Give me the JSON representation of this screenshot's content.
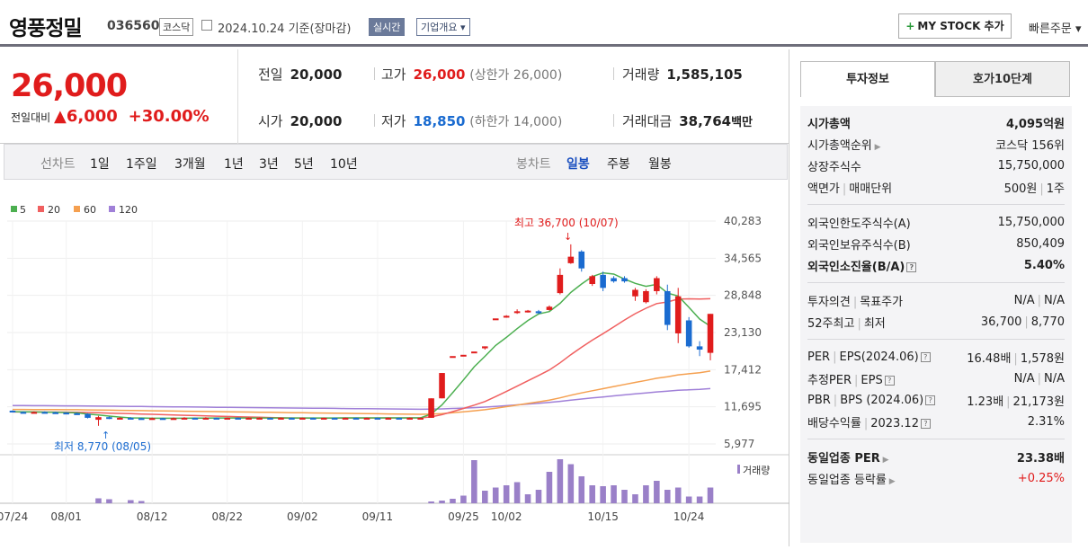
{
  "header": {
    "name": "영풍정밀",
    "code": "036560",
    "market": "코스닥",
    "date": "2024.10.24 기준(장마감)",
    "realtime": "실시간",
    "company_info": "기업개요",
    "mystock": "MY STOCK 추가",
    "quick_order": "빠른주문"
  },
  "price": {
    "current": "26,000",
    "change_label": "전일대비",
    "change": "6,000",
    "change_pct": "+30.00%",
    "prev_label": "전일",
    "prev": "20,000",
    "high_label": "고가",
    "high": "26,000",
    "high_limit": "(상한가 26,000)",
    "volume_label": "거래량",
    "volume": "1,585,105",
    "open_label": "시가",
    "open": "20,000",
    "low_label": "저가",
    "low": "18,850",
    "low_limit": "(하한가 14,000)",
    "amount_label": "거래대금",
    "amount": "38,764",
    "amount_unit": "백만"
  },
  "range_tabs": {
    "label": "선차트",
    "items": [
      "1일",
      "1주일",
      "3개월",
      "1년",
      "3년",
      "5년",
      "10년"
    ]
  },
  "candle_tabs": {
    "label": "봉차트",
    "items": [
      "일봉",
      "주봉",
      "월봉"
    ],
    "selected": "일봉"
  },
  "legend": {
    "ma5": "5",
    "ma20": "20",
    "ma60": "60",
    "ma120": "120",
    "volume": "거래량"
  },
  "colors": {
    "ma5": "#4caf50",
    "ma20": "#f06060",
    "ma60": "#f5a050",
    "ma120": "#a080d8",
    "up": "#e01c1c",
    "down": "#1a6bd0",
    "volume": "#9a80c8"
  },
  "chart_data": {
    "type": "candlestick",
    "y_ticks": [
      "40,283",
      "34,565",
      "28,848",
      "23,130",
      "17,412",
      "11,695",
      "5,977"
    ],
    "x_ticks": [
      "07/24",
      "08/01",
      "08/12",
      "08/22",
      "09/02",
      "09/11",
      "09/25",
      "10/02",
      "10/15",
      "10/24"
    ],
    "max_label": "최고 36,700 (10/07)",
    "min_label": "최저 8,770 (08/05)",
    "candles": [
      [
        11100,
        10900,
        11150,
        10850
      ],
      [
        10900,
        10800,
        11000,
        10700
      ],
      [
        10800,
        10900,
        11000,
        10700
      ],
      [
        10900,
        10850,
        11000,
        10750
      ],
      [
        10850,
        10800,
        10950,
        10700
      ],
      [
        10800,
        10700,
        10850,
        10600
      ],
      [
        10700,
        10600,
        10800,
        10500
      ],
      [
        10600,
        10000,
        10700,
        9900
      ],
      [
        9700,
        10100,
        10300,
        8770
      ],
      [
        10100,
        9900,
        10200,
        9800
      ],
      [
        9900,
        10000,
        10100,
        9800
      ],
      [
        10000,
        9950,
        10100,
        9850
      ],
      [
        9950,
        9900,
        10000,
        9800
      ],
      [
        9900,
        9950,
        10050,
        9850
      ],
      [
        9950,
        9900,
        10000,
        9800
      ],
      [
        9900,
        9950,
        10050,
        9850
      ],
      [
        9950,
        10000,
        10100,
        9900
      ],
      [
        10000,
        9950,
        10050,
        9850
      ],
      [
        9950,
        10000,
        10100,
        9900
      ],
      [
        10000,
        9950,
        10050,
        9900
      ],
      [
        9950,
        10000,
        10050,
        9900
      ],
      [
        10000,
        9950,
        10050,
        9900
      ],
      [
        9950,
        10000,
        10050,
        9900
      ],
      [
        10000,
        10000,
        10050,
        9950
      ],
      [
        10000,
        9950,
        10050,
        9900
      ],
      [
        9950,
        10000,
        10050,
        9900
      ],
      [
        10000,
        9950,
        10050,
        9900
      ],
      [
        9950,
        10000,
        10050,
        9900
      ],
      [
        10000,
        9950,
        10050,
        9900
      ],
      [
        9950,
        10000,
        10050,
        9900
      ],
      [
        10000,
        9980,
        10050,
        9900
      ],
      [
        9980,
        10000,
        10050,
        9950
      ],
      [
        10000,
        9980,
        10050,
        9950
      ],
      [
        9980,
        10000,
        10050,
        9950
      ],
      [
        10000,
        9980,
        10050,
        9950
      ],
      [
        9980,
        10000,
        10050,
        9950
      ],
      [
        10000,
        9980,
        10050,
        9950
      ],
      [
        9980,
        10000,
        10050,
        9950
      ],
      [
        10000,
        10000,
        10050,
        9950
      ],
      [
        10000,
        13000,
        13000,
        10000
      ],
      [
        13000,
        16900,
        16900,
        13000
      ],
      [
        19500,
        19500,
        19500,
        19500
      ],
      [
        19700,
        19700,
        19700,
        19700
      ],
      [
        20200,
        20200,
        20200,
        20200
      ],
      [
        20700,
        21000,
        21000,
        20500
      ],
      [
        25300,
        25300,
        25300,
        25300
      ],
      [
        25500,
        25700,
        25800,
        25400
      ],
      [
        26200,
        26400,
        26700,
        26000
      ],
      [
        26300,
        26500,
        26600,
        26200
      ],
      [
        26400,
        26100,
        26600,
        26000
      ],
      [
        26600,
        27100,
        27300,
        26500
      ],
      [
        29200,
        32000,
        33000,
        29000
      ],
      [
        33800,
        34800,
        36700,
        33700
      ],
      [
        35600,
        33000,
        35800,
        32500
      ],
      [
        30600,
        31800,
        32000,
        30300
      ],
      [
        32000,
        30000,
        32500,
        29500
      ],
      [
        31500,
        31000,
        31800,
        30800
      ],
      [
        31500,
        31000,
        31800,
        30800
      ],
      [
        28700,
        29700,
        30000,
        28000
      ],
      [
        27800,
        29500,
        29800,
        27600
      ],
      [
        29500,
        31500,
        31800,
        29000
      ],
      [
        29500,
        24300,
        30500,
        23500
      ],
      [
        23000,
        28700,
        30000,
        21500
      ],
      [
        25000,
        21000,
        25500,
        20800
      ],
      [
        21000,
        20500,
        21800,
        19500
      ],
      [
        20000,
        26000,
        26000,
        18850
      ]
    ],
    "volume_rel": [
      0,
      0,
      0,
      0,
      0,
      0,
      0,
      0,
      0.11,
      0.09,
      0,
      0.07,
      0.05,
      0,
      0,
      0,
      0,
      0,
      0,
      0,
      0,
      0,
      0,
      0,
      0,
      0,
      0,
      0,
      0,
      0,
      0,
      0,
      0,
      0,
      0,
      0,
      0,
      0,
      0,
      0.04,
      0.06,
      0.1,
      0.17,
      0.96,
      0.28,
      0.35,
      0.4,
      0.47,
      0.2,
      0.3,
      0.7,
      0.98,
      0.87,
      0.6,
      0.4,
      0.38,
      0.4,
      0.3,
      0.2,
      0.4,
      0.5,
      0.3,
      0.35,
      0.15,
      0.15,
      0.35
    ]
  },
  "sidebar": {
    "tab_active": "투자정보",
    "tab_other": "호가10단계",
    "market_cap_label": "시가총액",
    "market_cap": "4,095억원",
    "rank_label": "시가총액순위",
    "rank": "코스닥 156위",
    "shares_label": "상장주식수",
    "shares": "15,750,000",
    "par_label": "액면가",
    "unit_label": "매매단위",
    "par": "500원",
    "unit": "1주",
    "foreign_limit_label": "외국인한도주식수(A)",
    "foreign_limit": "15,750,000",
    "foreign_hold_label": "외국인보유주식수(B)",
    "foreign_hold": "850,409",
    "foreign_ratio_label": "외국인소진율(B/A)",
    "foreign_ratio": "5.40%",
    "opinion_label": "투자의견",
    "target_label": "목표주가",
    "opinion": "N/A",
    "target": "N/A",
    "w52_high_label": "52주최고",
    "w52_low_label": "최저",
    "w52_high": "36,700",
    "w52_low": "8,770",
    "per_label": "PER",
    "eps_label": "EPS(2024.06)",
    "per": "16.48배",
    "eps": "1,578원",
    "est_per_label": "추정PER",
    "est_eps_label": "EPS",
    "est_per": "N/A",
    "est_eps": "N/A",
    "pbr_label": "PBR",
    "bps_label": "BPS (2024.06)",
    "pbr": "1.23배",
    "bps": "21,173원",
    "div_label": "배당수익률",
    "div_year": "2023.12",
    "div": "2.31%",
    "sector_per_label": "동일업종 PER",
    "sector_per": "23.38배",
    "sector_chg_label": "동일업종 등락률",
    "sector_chg": "+0.25%"
  }
}
